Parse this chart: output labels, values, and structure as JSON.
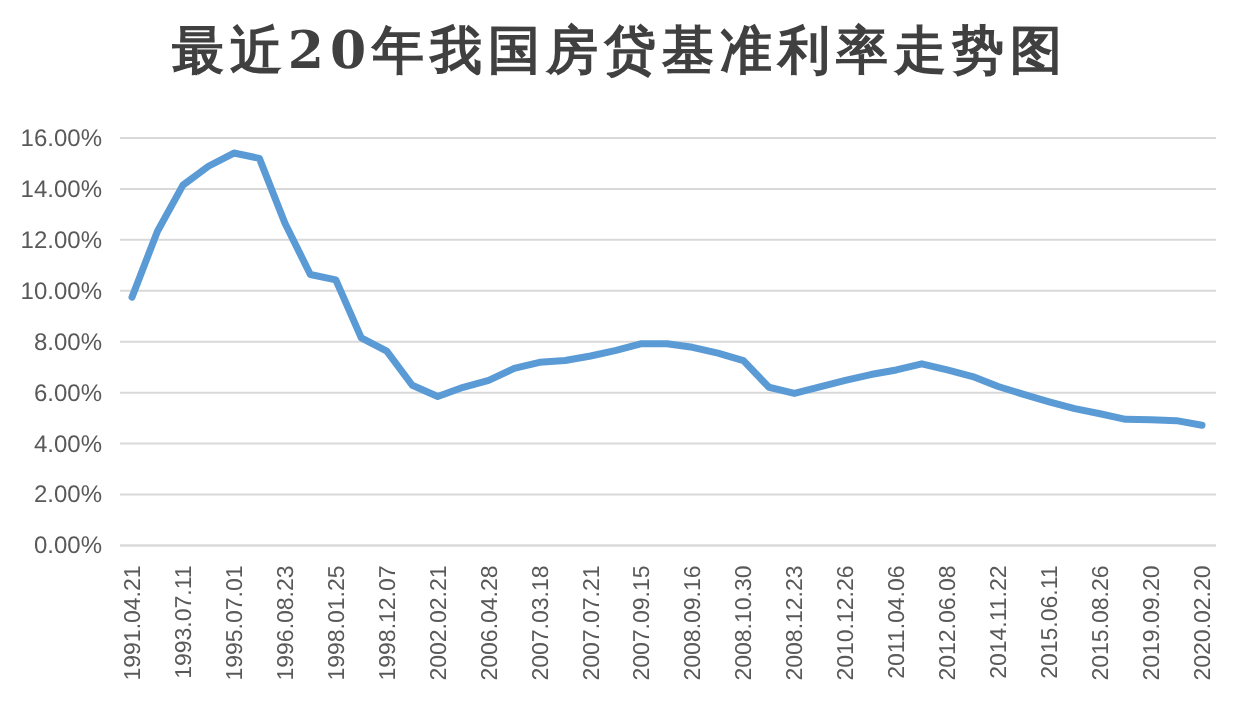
{
  "chart_data": {
    "type": "line",
    "title": "最近20年我国房贷基准利率走势图",
    "categories": [
      "1991.04.21",
      null,
      "1993.07.11",
      null,
      "1995.07.01",
      null,
      "1996.08.23",
      null,
      "1998.01.25",
      null,
      "1998.12.07",
      null,
      "2002.02.21",
      null,
      "2006.04.28",
      null,
      "2007.03.18",
      null,
      "2007.07.21",
      null,
      "2007.09.15",
      null,
      "2008.09.16",
      null,
      "2008.10.30",
      null,
      "2008.12.23",
      null,
      "2010.12.26",
      null,
      "2011.04.06",
      null,
      "2012.06.08",
      null,
      "2014.11.22",
      null,
      "2015.06.11",
      null,
      "2015.08.26",
      null,
      "2019.09.20",
      null,
      "2020.02.20"
    ],
    "series": [
      {
        "color": "#5b9bd5",
        "values": [
          9.75,
          12.34,
          14.15,
          14.89,
          15.41,
          15.2,
          12.66,
          10.64,
          10.43,
          8.15,
          7.63,
          6.29,
          5.85,
          6.21,
          6.48,
          6.95,
          7.19,
          7.26,
          7.44,
          7.66,
          7.92,
          7.92,
          7.78,
          7.55,
          7.26,
          6.21,
          5.97,
          6.23,
          6.48,
          6.71,
          6.89,
          7.13,
          6.89,
          6.63,
          6.24,
          5.93,
          5.64,
          5.37,
          5.17,
          4.95,
          4.93,
          4.9,
          4.72
        ]
      }
    ],
    "ylim": [
      0,
      16
    ],
    "yticks": [
      {
        "value": 0,
        "label": "0.00%"
      },
      {
        "value": 2,
        "label": "2.00%"
      },
      {
        "value": 4,
        "label": "4.00%"
      },
      {
        "value": 6,
        "label": "6.00%"
      },
      {
        "value": 8,
        "label": "8.00%"
      },
      {
        "value": 10,
        "label": "10.00%"
      },
      {
        "value": 12,
        "label": "12.00%"
      },
      {
        "value": 14,
        "label": "14.00%"
      },
      {
        "value": 16,
        "label": "16.00%"
      }
    ],
    "grid": "y"
  }
}
